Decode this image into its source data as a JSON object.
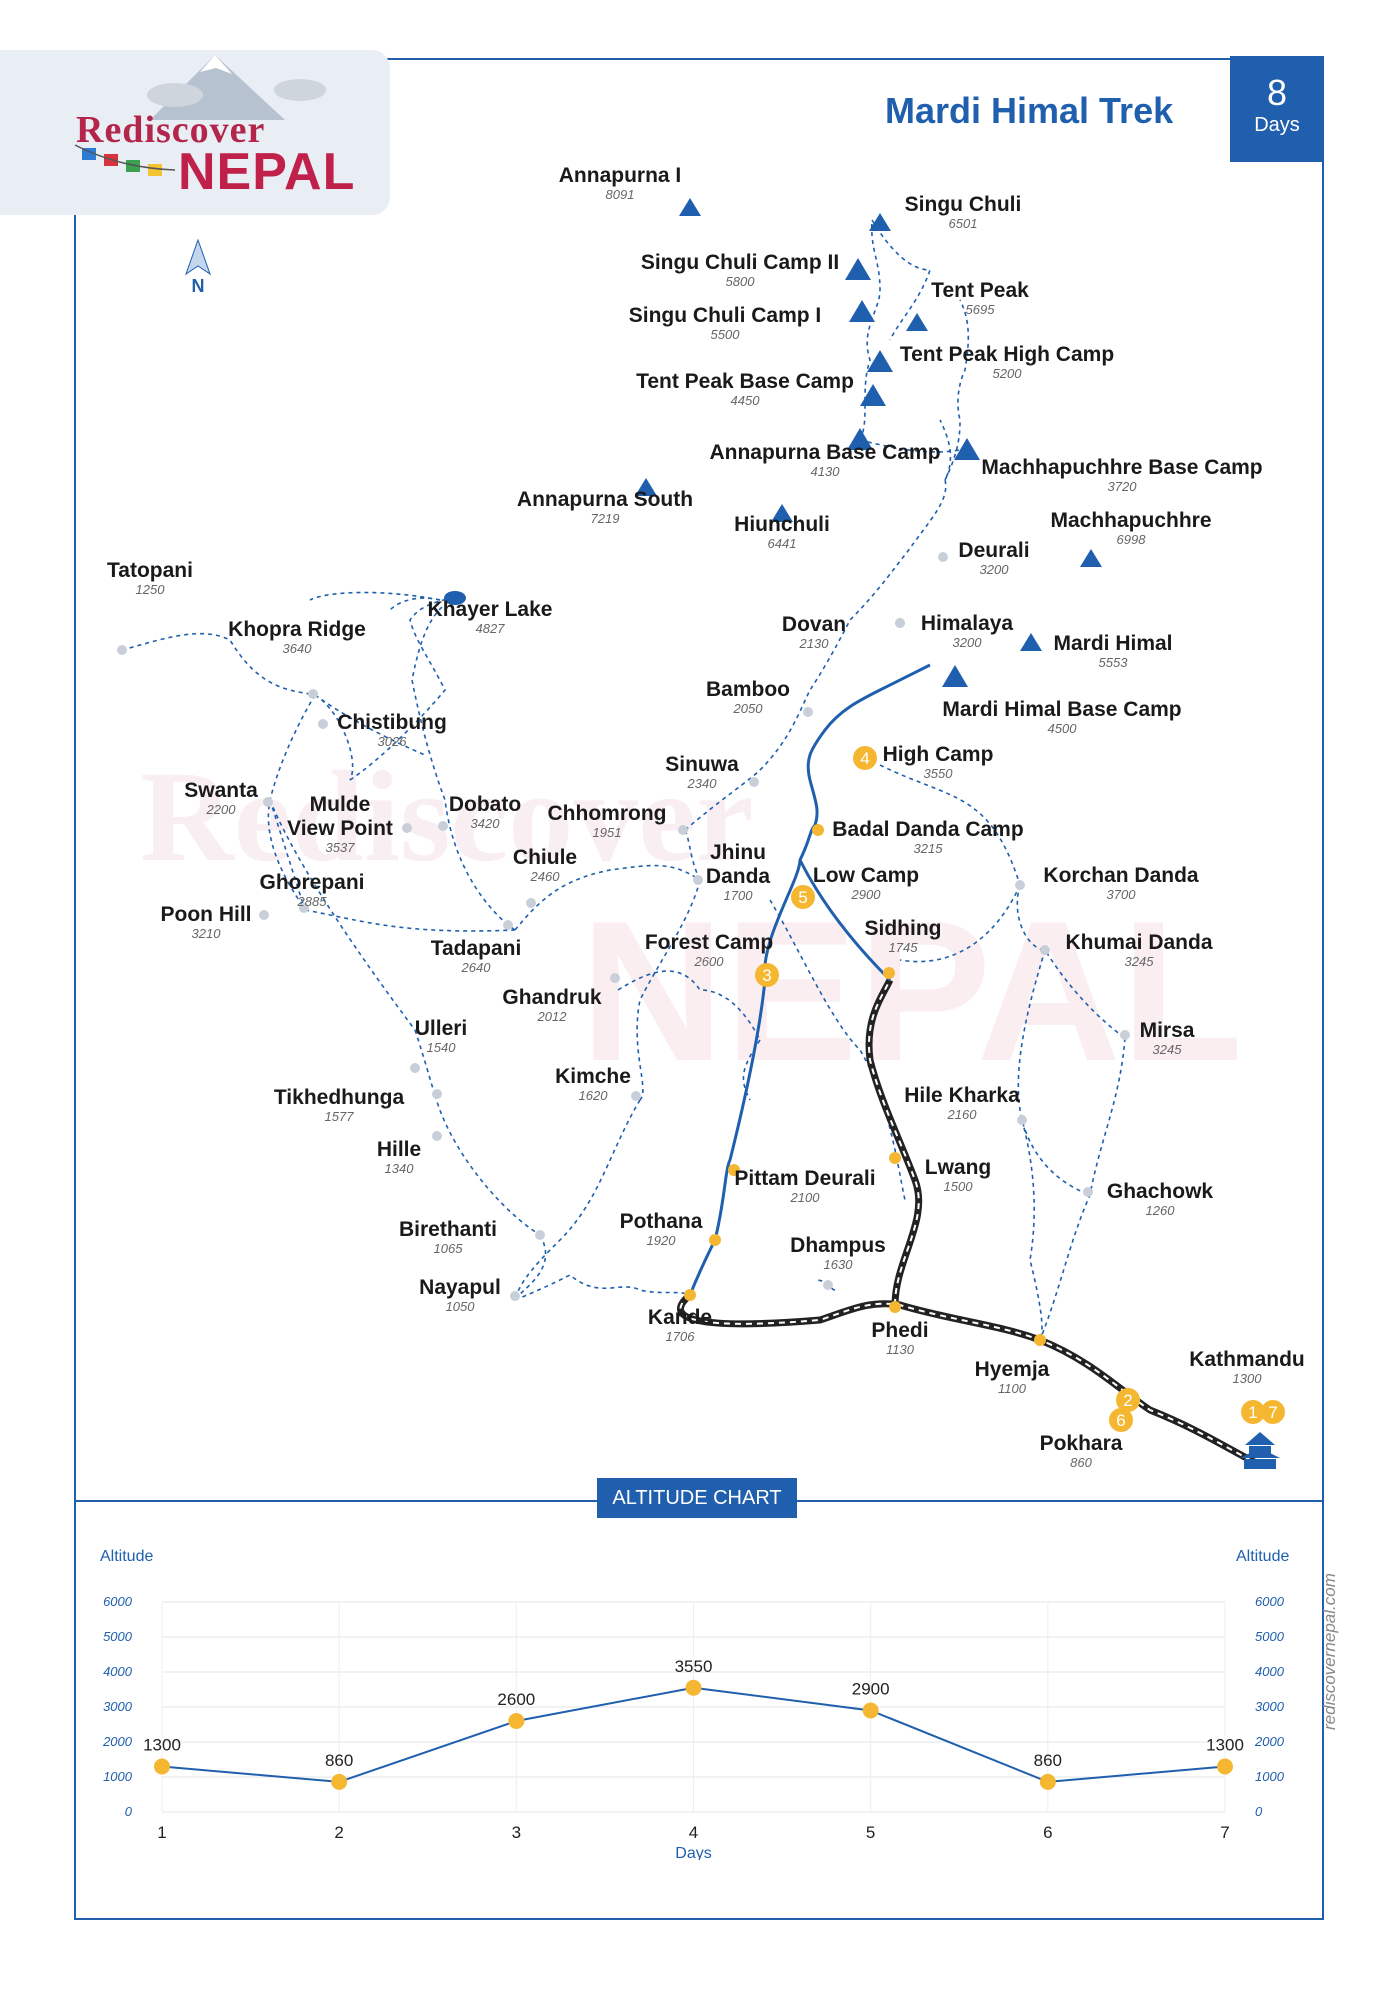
{
  "brand": {
    "line1": "Rediscover",
    "line2": "NEPAL",
    "website": "rediscovernepal.com"
  },
  "trek": {
    "title": "Mardi Himal Trek",
    "days_number": "8",
    "days_label": "Days"
  },
  "compass": {
    "label": "N"
  },
  "colors": {
    "route": "#1f5fae",
    "accent": "#f5b731",
    "secondary": "#c8cfd9",
    "road": "#222222"
  },
  "places": [
    {
      "id": "annapurna-i",
      "name": "Annapurna I",
      "alt": "8091",
      "kind": "peak"
    },
    {
      "id": "singu-chuli",
      "name": "Singu Chuli",
      "alt": "6501",
      "kind": "peak"
    },
    {
      "id": "singu-chuli-camp-ii",
      "name": "Singu Chuli Camp II",
      "alt": "5800",
      "kind": "camp"
    },
    {
      "id": "singu-chuli-camp-i",
      "name": "Singu Chuli Camp I",
      "alt": "5500",
      "kind": "camp"
    },
    {
      "id": "tent-peak",
      "name": "Tent Peak",
      "alt": "5695",
      "kind": "peak"
    },
    {
      "id": "tent-peak-high-camp",
      "name": "Tent Peak High Camp",
      "alt": "5200",
      "kind": "camp"
    },
    {
      "id": "tent-peak-base-camp",
      "name": "Tent Peak Base Camp",
      "alt": "4450",
      "kind": "camp"
    },
    {
      "id": "annapurna-base-camp",
      "name": "Annapurna Base Camp",
      "alt": "4130",
      "kind": "camp"
    },
    {
      "id": "machhapuchhre-base-camp",
      "name": "Machhapuchhre Base Camp",
      "alt": "3720",
      "kind": "camp"
    },
    {
      "id": "annapurna-south",
      "name": "Annapurna South",
      "alt": "7219",
      "kind": "peak"
    },
    {
      "id": "hiunchuli",
      "name": "Hiunchuli",
      "alt": "6441",
      "kind": "peak"
    },
    {
      "id": "machhapuchhre",
      "name": "Machhapuchhre",
      "alt": "6998",
      "kind": "peak"
    },
    {
      "id": "deurali",
      "name": "Deurali",
      "alt": "3200",
      "kind": "stop"
    },
    {
      "id": "tatopani",
      "name": "Tatopani",
      "alt": "1250",
      "kind": "stop"
    },
    {
      "id": "khayer-lake",
      "name": "Khayer Lake",
      "alt": "4827",
      "kind": "lake"
    },
    {
      "id": "khopra-ridge",
      "name": "Khopra Ridge",
      "alt": "3640",
      "kind": "stop"
    },
    {
      "id": "dovan",
      "name": "Dovan",
      "alt": "2130",
      "kind": "stop"
    },
    {
      "id": "himalaya",
      "name": "Himalaya",
      "alt": "3200",
      "kind": "stop"
    },
    {
      "id": "mardi-himal",
      "name": "Mardi Himal",
      "alt": "5553",
      "kind": "peak"
    },
    {
      "id": "bamboo",
      "name": "Bamboo",
      "alt": "2050",
      "kind": "stop"
    },
    {
      "id": "mardi-himal-base-camp",
      "name": "Mardi Himal Base Camp",
      "alt": "4500",
      "kind": "camp"
    },
    {
      "id": "chistibung",
      "name": "Chistibung",
      "alt": "3026",
      "kind": "stop"
    },
    {
      "id": "high-camp",
      "name": "High Camp",
      "alt": "3550",
      "kind": "route"
    },
    {
      "id": "sinuwa",
      "name": "Sinuwa",
      "alt": "2340",
      "kind": "stop"
    },
    {
      "id": "swanta",
      "name": "Swanta",
      "alt": "2200",
      "kind": "stop"
    },
    {
      "id": "mulde-view-point",
      "name": "Mulde\nView Point",
      "alt": "3537",
      "kind": "stop"
    },
    {
      "id": "dobato",
      "name": "Dobato",
      "alt": "3420",
      "kind": "stop"
    },
    {
      "id": "chhomrong",
      "name": "Chhomrong",
      "alt": "1951",
      "kind": "stop"
    },
    {
      "id": "badal-danda-camp",
      "name": "Badal Danda Camp",
      "alt": "3215",
      "kind": "route"
    },
    {
      "id": "jhinu-danda",
      "name": "Jhinu\nDanda",
      "alt": "1700",
      "kind": "stop"
    },
    {
      "id": "chiule",
      "name": "Chiule",
      "alt": "2460",
      "kind": "stop"
    },
    {
      "id": "low-camp",
      "name": "Low Camp",
      "alt": "2900",
      "kind": "route"
    },
    {
      "id": "korchan-danda",
      "name": "Korchan Danda",
      "alt": "3700",
      "kind": "stop"
    },
    {
      "id": "ghorepani",
      "name": "Ghorepani",
      "alt": "2885",
      "kind": "stop"
    },
    {
      "id": "poon-hill",
      "name": "Poon Hill",
      "alt": "3210",
      "kind": "stop"
    },
    {
      "id": "sidhing",
      "name": "Sidhing",
      "alt": "1745",
      "kind": "route"
    },
    {
      "id": "forest-camp",
      "name": "Forest Camp",
      "alt": "2600",
      "kind": "route"
    },
    {
      "id": "khumai-danda",
      "name": "Khumai Danda",
      "alt": "3245",
      "kind": "stop"
    },
    {
      "id": "tadapani",
      "name": "Tadapani",
      "alt": "2640",
      "kind": "stop"
    },
    {
      "id": "ghandruk",
      "name": "Ghandruk",
      "alt": "2012",
      "kind": "stop"
    },
    {
      "id": "ulleri",
      "name": "Ulleri",
      "alt": "1540",
      "kind": "stop"
    },
    {
      "id": "mirsa",
      "name": "Mirsa",
      "alt": "3245",
      "kind": "stop"
    },
    {
      "id": "kimche",
      "name": "Kimche",
      "alt": "1620",
      "kind": "stop"
    },
    {
      "id": "tikhedhunga",
      "name": "Tikhedhunga",
      "alt": "1577",
      "kind": "stop"
    },
    {
      "id": "hile-kharka",
      "name": "Hile Kharka",
      "alt": "2160",
      "kind": "stop"
    },
    {
      "id": "hille",
      "name": "Hille",
      "alt": "1340",
      "kind": "stop"
    },
    {
      "id": "lwang",
      "name": "Lwang",
      "alt": "1500",
      "kind": "route"
    },
    {
      "id": "pittam-deurali",
      "name": "Pittam Deurali",
      "alt": "2100",
      "kind": "route"
    },
    {
      "id": "ghachowk",
      "name": "Ghachowk",
      "alt": "1260",
      "kind": "stop"
    },
    {
      "id": "birethanti",
      "name": "Birethanti",
      "alt": "1065",
      "kind": "stop"
    },
    {
      "id": "pothana",
      "name": "Pothana",
      "alt": "1920",
      "kind": "route"
    },
    {
      "id": "dhampus",
      "name": "Dhampus",
      "alt": "1630",
      "kind": "stop"
    },
    {
      "id": "nayapul",
      "name": "Nayapul",
      "alt": "1050",
      "kind": "stop"
    },
    {
      "id": "kande",
      "name": "Kande",
      "alt": "1706",
      "kind": "route"
    },
    {
      "id": "phedi",
      "name": "Phedi",
      "alt": "1130",
      "kind": "route"
    },
    {
      "id": "kathmandu",
      "name": "Kathmandu",
      "alt": "1300",
      "kind": "city"
    },
    {
      "id": "hyemja",
      "name": "Hyemja",
      "alt": "1100",
      "kind": "route"
    },
    {
      "id": "pokhara",
      "name": "Pokhara",
      "alt": "860",
      "kind": "city"
    }
  ],
  "day_markers": [
    {
      "id": "day-4",
      "label": "4"
    },
    {
      "id": "day-5",
      "label": "5"
    },
    {
      "id": "day-3",
      "label": "3"
    },
    {
      "id": "day-2",
      "label": "2"
    },
    {
      "id": "day-6",
      "label": "6"
    },
    {
      "id": "day-1",
      "label": "1"
    },
    {
      "id": "day-7",
      "label": "7"
    }
  ],
  "altitude_chart": {
    "title": "ALTITUDE CHART",
    "ylabel_left": "Altitude",
    "ylabel_right": "Altitude",
    "xlabel": "Days"
  },
  "chart_data": {
    "type": "line",
    "x": [
      1,
      2,
      3,
      4,
      5,
      6,
      7
    ],
    "values": [
      1300,
      860,
      2600,
      3550,
      2900,
      860,
      1300
    ],
    "data_labels": [
      "1300",
      "860",
      "2600",
      "3550",
      "2900",
      "860",
      "1300"
    ],
    "yticks": [
      0,
      1000,
      2000,
      3000,
      4000,
      5000,
      6000
    ],
    "ylim": [
      0,
      6000
    ],
    "xlabel": "Days",
    "ylabel": "Altitude",
    "grid": true,
    "line_color": "#1f5fae",
    "marker_color": "#f5b731"
  }
}
